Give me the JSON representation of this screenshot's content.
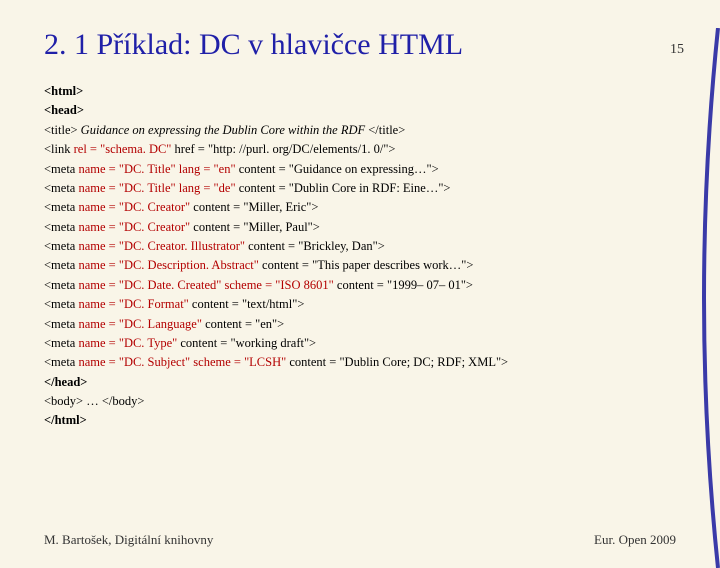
{
  "page_number": "15",
  "heading": "2. 1  Příklad: DC v hlavičce HTML",
  "lines": [
    {
      "parts": [
        {
          "t": "<html>",
          "bold": true
        }
      ]
    },
    {
      "parts": [
        {
          "t": "<head>",
          "bold": true
        }
      ]
    },
    {
      "parts": [
        {
          "t": "<title> "
        },
        {
          "t": "Guidance on expressing the Dublin Core within the RDF",
          "italic": true
        },
        {
          "t": " </title>"
        }
      ]
    },
    {
      "parts": [
        {
          "t": "<link "
        },
        {
          "t": "rel = \"schema. DC\"",
          "hl": true
        },
        {
          "t": " href = \"http: //purl. org/DC/elements/1. 0/\">"
        }
      ]
    },
    {
      "parts": [
        {
          "t": "<meta "
        },
        {
          "t": "name = \"DC. Title\"",
          "hl": true
        },
        {
          "t": " "
        },
        {
          "t": "lang = \"en\"",
          "hl": true
        },
        {
          "t": " content = \"Guidance on expressing…\">"
        }
      ]
    },
    {
      "parts": [
        {
          "t": "<meta "
        },
        {
          "t": "name = \"DC. Title\"",
          "hl": true
        },
        {
          "t": " "
        },
        {
          "t": "lang = \"de\"",
          "hl": true
        },
        {
          "t": " content = \"Dublin Core in RDF: Eine…\">"
        }
      ]
    },
    {
      "parts": [
        {
          "t": "<meta "
        },
        {
          "t": "name = \"DC. Creator\"",
          "hl": true
        },
        {
          "t": " content = \"Miller, Eric\">"
        }
      ]
    },
    {
      "parts": [
        {
          "t": "<meta "
        },
        {
          "t": "name = \"DC. Creator\"",
          "hl": true
        },
        {
          "t": " content = \"Miller, Paul\">"
        }
      ]
    },
    {
      "parts": [
        {
          "t": "<meta "
        },
        {
          "t": "name = \"DC. Creator. Illustrator\"",
          "hl": true
        },
        {
          "t": " content = \"Brickley, Dan\">"
        }
      ]
    },
    {
      "parts": [
        {
          "t": "<meta "
        },
        {
          "t": "name = \"DC. Description. Abstract\"",
          "hl": true
        },
        {
          "t": " content = \"This paper describes work…\">"
        }
      ]
    },
    {
      "parts": [
        {
          "t": "<meta "
        },
        {
          "t": "name = \"DC. Date. Created\"",
          "hl": true
        },
        {
          "t": " "
        },
        {
          "t": "scheme = \"ISO 8601\"",
          "hl": true
        },
        {
          "t": " content = \"1999– 07– 01\">"
        }
      ]
    },
    {
      "parts": [
        {
          "t": "<meta "
        },
        {
          "t": "name = \"DC. Format\"",
          "hl": true
        },
        {
          "t": " content = \"text/html\">"
        }
      ]
    },
    {
      "parts": [
        {
          "t": "<meta "
        },
        {
          "t": "name = \"DC. Language\"",
          "hl": true
        },
        {
          "t": " content = \"en\">"
        }
      ]
    },
    {
      "parts": [
        {
          "t": "<meta "
        },
        {
          "t": "name = \"DC. Type\"",
          "hl": true
        },
        {
          "t": " content = \"working draft\">"
        }
      ]
    },
    {
      "parts": [
        {
          "t": "<meta "
        },
        {
          "t": "name = \"DC. Subject\"",
          "hl": true
        },
        {
          "t": " "
        },
        {
          "t": "scheme = \"LCSH\"",
          "hl": true
        },
        {
          "t": " content = \"Dublin Core; DC; RDF; XML\">"
        }
      ]
    },
    {
      "parts": [
        {
          "t": "</head>",
          "bold": true
        }
      ]
    },
    {
      "parts": [
        {
          "t": "<body> … </body>"
        }
      ]
    },
    {
      "parts": [
        {
          "t": "</html>",
          "bold": true
        }
      ]
    }
  ],
  "footer_left": "M. Bartošek, Digitální knihovny",
  "footer_right": "Eur. Open 2009",
  "colors": {
    "background": "#f9f5e8",
    "heading": "#2020a8",
    "highlight": "#b30000",
    "text": "#333333",
    "curve": "#3a3aa8"
  }
}
